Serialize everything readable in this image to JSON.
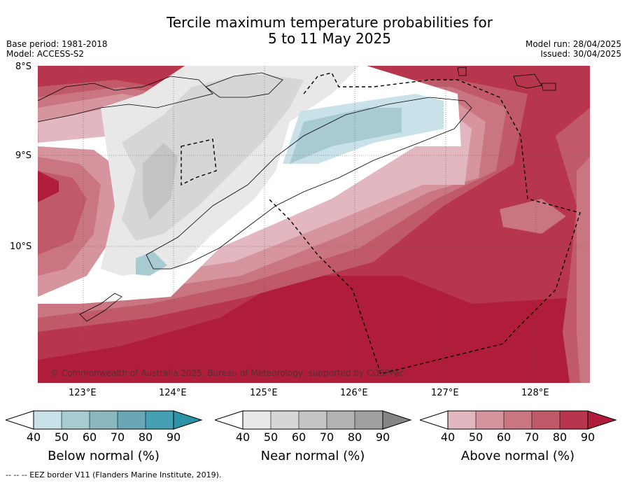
{
  "title": {
    "line1": "Tercile maximum temperature probabilities for",
    "line2": "5 to 11 May 2025"
  },
  "meta": {
    "base_period": "Base period: 1981-2018",
    "model": "Model: ACCESS-S2",
    "model_run": "Model run: 28/04/2025",
    "issued": "Issued: 30/04/2025"
  },
  "map": {
    "region": "Timor-Leste",
    "lat_labels": [
      "8°S",
      "9°S",
      "10°S"
    ],
    "lon_labels": [
      "123°E",
      "124°E",
      "125°E",
      "126°E",
      "127°E",
      "128°E"
    ],
    "copyright": "© Commonwealth of Australia 2025, Bureau of Meteorology, supported by COSPPac",
    "colors": {
      "below": [
        "#c9e1e8",
        "#a8cbd1",
        "#8bb8be",
        "#6aa7b5",
        "#45a0b3",
        "#2b93a8"
      ],
      "near": [
        "#e8e8e8",
        "#d6d6d6",
        "#c4c4c4",
        "#b3b3b3",
        "#a0a0a0",
        "#858585"
      ],
      "above": [
        "#e2b7bf",
        "#d5949e",
        "#c97582",
        "#c05a69",
        "#b8364d",
        "#b01d3a"
      ]
    }
  },
  "colorbars": [
    {
      "title": "Below normal (%)",
      "ticks": [
        "40",
        "50",
        "60",
        "70",
        "80",
        "90"
      ]
    },
    {
      "title": "Near normal (%)",
      "ticks": [
        "40",
        "50",
        "60",
        "70",
        "80",
        "90"
      ]
    },
    {
      "title": "Above normal (%)",
      "ticks": [
        "40",
        "50",
        "60",
        "70",
        "80",
        "90"
      ]
    }
  ],
  "footer": "--  --  -- EEZ border V11 (Flanders Marine Institute, 2019)."
}
